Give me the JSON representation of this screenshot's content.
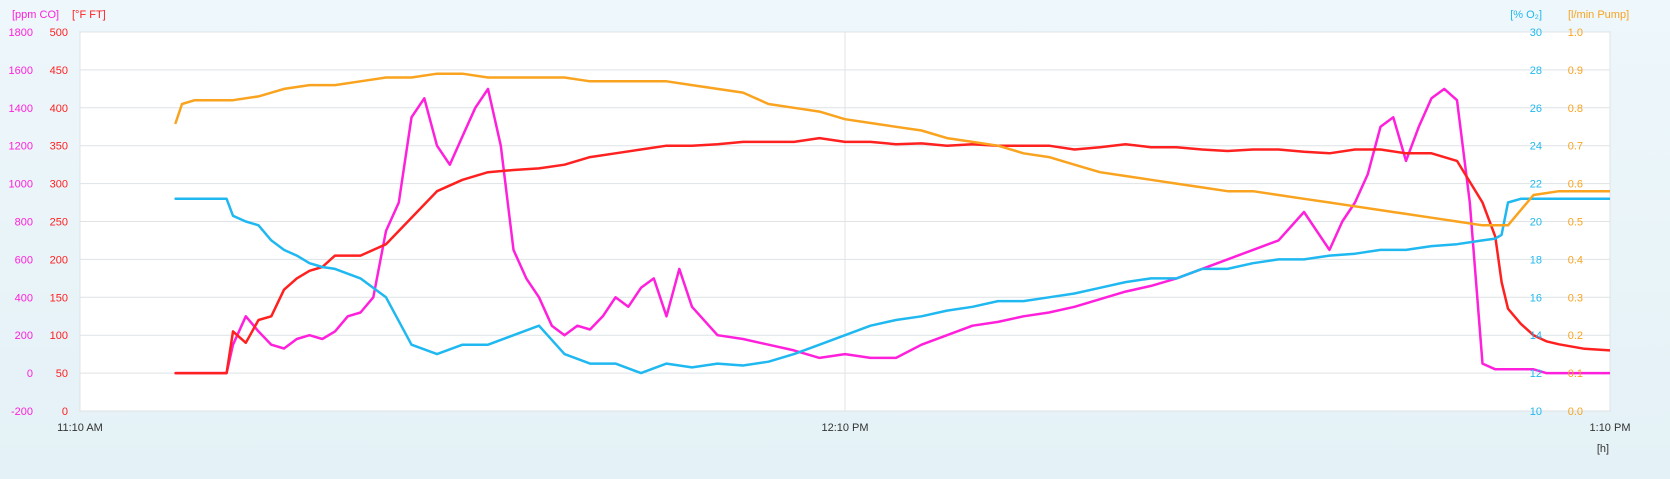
{
  "chart_data": {
    "type": "line",
    "axis_titles": {
      "ppm": "[ppm CO]",
      "f": "[°F FT]",
      "o2": "[% O₂]",
      "pump": "[l/min Pump]"
    },
    "x_axis": {
      "ticks": [
        "11:10 AM",
        "12:10 PM",
        "1:10 PM"
      ],
      "unit_label": "[h]",
      "range_minutes": [
        0,
        120
      ]
    },
    "y_axes": {
      "ppm": {
        "ticks": [
          "1800",
          "1600",
          "1400",
          "1200",
          "1000",
          "800",
          "600",
          "400",
          "200",
          "0",
          "-200"
        ],
        "range": [
          -200,
          1800
        ]
      },
      "f": {
        "ticks": [
          "500",
          "450",
          "400",
          "350",
          "300",
          "250",
          "200",
          "150",
          "100",
          "50",
          "0"
        ],
        "range": [
          0,
          500
        ]
      },
      "o2": {
        "ticks": [
          "30",
          "28",
          "26",
          "24",
          "22",
          "20",
          "18",
          "16",
          "14",
          "12",
          "10"
        ],
        "range": [
          10,
          30
        ]
      },
      "pump": {
        "ticks": [
          "1.0",
          "0.9",
          "0.8",
          "0.7",
          "0.6",
          "0.5",
          "0.4",
          "0.3",
          "0.2",
          "0.1",
          "0.0"
        ],
        "range": [
          0,
          1
        ]
      }
    },
    "grid": true,
    "series": [
      {
        "axis": "ppm",
        "color": "#ff20dc",
        "x": [
          7.5,
          11.5,
          12,
          13,
          14,
          15,
          16,
          17,
          18,
          19,
          20,
          21,
          22,
          23,
          24,
          25,
          26,
          27,
          28,
          29,
          30,
          31,
          32,
          33,
          34,
          35,
          36,
          37,
          38,
          39,
          40,
          41,
          42,
          43,
          44,
          45,
          46,
          47,
          48,
          50,
          52,
          54,
          56,
          58,
          60,
          62,
          64,
          66,
          68,
          70,
          72,
          74,
          76,
          78,
          80,
          82,
          84,
          86,
          88,
          90,
          92,
          94,
          96,
          98,
          99,
          100,
          101,
          102,
          103,
          104,
          105,
          106,
          107,
          108,
          109,
          110,
          111,
          112,
          113,
          114,
          115,
          116,
          117,
          119,
          121
        ],
        "y": [
          0,
          0,
          150,
          300,
          220,
          150,
          130,
          180,
          200,
          180,
          220,
          300,
          320,
          400,
          750,
          900,
          1350,
          1450,
          1200,
          1100,
          1250,
          1400,
          1500,
          1200,
          650,
          500,
          400,
          250,
          200,
          250,
          230,
          300,
          400,
          350,
          450,
          500,
          300,
          550,
          350,
          200,
          180,
          150,
          120,
          80,
          100,
          80,
          80,
          150,
          200,
          250,
          270,
          300,
          320,
          350,
          390,
          430,
          460,
          500,
          550,
          600,
          650,
          700,
          850,
          650,
          800,
          900,
          1050,
          1300,
          1350,
          1120,
          1300,
          1450,
          1500,
          1440,
          900,
          50,
          20,
          20,
          20,
          20,
          0,
          0,
          0,
          0,
          0
        ]
      },
      {
        "axis": "f",
        "color": "#ff2020",
        "x": [
          7.5,
          11.5,
          12,
          13,
          14,
          15,
          16,
          17,
          18,
          19,
          20,
          22,
          24,
          26,
          28,
          30,
          32,
          34,
          36,
          38,
          40,
          42,
          44,
          46,
          48,
          50,
          52,
          54,
          56,
          58,
          60,
          62,
          64,
          66,
          68,
          70,
          72,
          74,
          76,
          78,
          80,
          82,
          84,
          86,
          88,
          90,
          92,
          94,
          96,
          98,
          100,
          102,
          104,
          106,
          108,
          110,
          111,
          111.5,
          112,
          113,
          114,
          115,
          116,
          118,
          120,
          122
        ],
        "y": [
          50,
          50,
          105,
          90,
          120,
          125,
          160,
          175,
          185,
          190,
          205,
          205,
          220,
          255,
          290,
          305,
          315,
          318,
          320,
          325,
          335,
          340,
          345,
          350,
          350,
          352,
          355,
          355,
          355,
          360,
          355,
          355,
          352,
          353,
          350,
          352,
          350,
          350,
          350,
          345,
          348,
          352,
          348,
          348,
          345,
          343,
          345,
          345,
          342,
          340,
          345,
          345,
          340,
          340,
          330,
          275,
          230,
          170,
          135,
          115,
          100,
          92,
          88,
          82,
          80,
          80
        ]
      },
      {
        "axis": "o2",
        "color": "#20b8f0",
        "x": [
          7.5,
          11.5,
          12,
          13,
          14,
          15,
          16,
          17,
          18,
          19,
          20,
          22,
          24,
          26,
          28,
          30,
          32,
          34,
          36,
          38,
          40,
          42,
          44,
          46,
          48,
          50,
          52,
          54,
          56,
          58,
          60,
          62,
          64,
          66,
          68,
          70,
          72,
          74,
          76,
          78,
          80,
          82,
          84,
          86,
          88,
          90,
          92,
          94,
          96,
          98,
          100,
          102,
          104,
          106,
          108,
          110,
          111,
          111.5,
          112,
          113,
          114,
          115,
          116,
          118,
          120,
          122
        ],
        "y": [
          21.2,
          21.2,
          20.3,
          20,
          19.8,
          19,
          18.5,
          18.2,
          17.8,
          17.6,
          17.5,
          17,
          16,
          13.5,
          13,
          13.5,
          13.5,
          14,
          14.5,
          13,
          12.5,
          12.5,
          12,
          12.5,
          12.3,
          12.5,
          12.4,
          12.6,
          13,
          13.5,
          14,
          14.5,
          14.8,
          15,
          15.3,
          15.5,
          15.8,
          15.8,
          16,
          16.2,
          16.5,
          16.8,
          17,
          17,
          17.5,
          17.5,
          17.8,
          18,
          18,
          18.2,
          18.3,
          18.5,
          18.5,
          18.7,
          18.8,
          19,
          19.1,
          19.3,
          21,
          21.2,
          21.2,
          21.2,
          21.2,
          21.2,
          21.2,
          21.2
        ]
      },
      {
        "axis": "pump",
        "color": "#f9a31f",
        "x": [
          7.5,
          8,
          9,
          10,
          12,
          14,
          16,
          18,
          20,
          22,
          24,
          26,
          28,
          30,
          32,
          34,
          36,
          38,
          40,
          42,
          44,
          46,
          48,
          50,
          52,
          54,
          56,
          58,
          60,
          62,
          64,
          66,
          68,
          70,
          72,
          74,
          76,
          78,
          80,
          82,
          84,
          86,
          88,
          90,
          92,
          94,
          96,
          98,
          100,
          102,
          104,
          106,
          108,
          110,
          112,
          114,
          116,
          118,
          120,
          122
        ],
        "y": [
          0.76,
          0.81,
          0.82,
          0.82,
          0.82,
          0.83,
          0.85,
          0.86,
          0.86,
          0.87,
          0.88,
          0.88,
          0.89,
          0.89,
          0.88,
          0.88,
          0.88,
          0.88,
          0.87,
          0.87,
          0.87,
          0.87,
          0.86,
          0.85,
          0.84,
          0.81,
          0.8,
          0.79,
          0.77,
          0.76,
          0.75,
          0.74,
          0.72,
          0.71,
          0.7,
          0.68,
          0.67,
          0.65,
          0.63,
          0.62,
          0.61,
          0.6,
          0.59,
          0.58,
          0.58,
          0.57,
          0.56,
          0.55,
          0.54,
          0.53,
          0.52,
          0.51,
          0.5,
          0.49,
          0.49,
          0.57,
          0.58,
          0.58,
          0.58,
          0.58
        ]
      }
    ]
  }
}
